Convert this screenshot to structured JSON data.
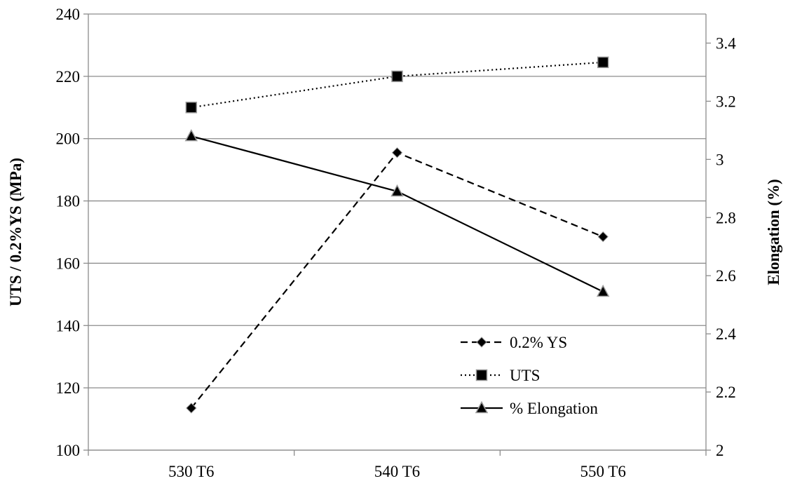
{
  "chart_data": {
    "type": "line",
    "categories": [
      "530 T6",
      "540 T6",
      "550 T6"
    ],
    "ylabel": "UTS / 0.2%YS (MPa)",
    "y2label": "Elongation (%)",
    "ylim": [
      100,
      240
    ],
    "y2lim": [
      2,
      3.5
    ],
    "yticks": [
      "100",
      "120",
      "140",
      "160",
      "180",
      "200",
      "220",
      "240"
    ],
    "y2ticks": [
      "2",
      "2.2",
      "2.4",
      "2.6",
      "2.8",
      "3",
      "3.2",
      "3.4"
    ],
    "grid": "horizontal",
    "legend_position": "bottom-right",
    "series": [
      {
        "name": "0.2% YS",
        "axis": "left",
        "values": [
          113.5,
          195.5,
          168.5
        ],
        "line_style": "dashed",
        "marker": "diamond",
        "color": "#000000"
      },
      {
        "name": "UTS",
        "axis": "left",
        "values": [
          210,
          220,
          224.5
        ],
        "line_style": "dotted",
        "marker": "square",
        "color": "#000000"
      },
      {
        "name": "% Elongation",
        "axis": "right",
        "values": [
          3.08,
          2.89,
          2.545
        ],
        "line_style": "solid",
        "marker": "triangle",
        "color": "#000000"
      }
    ]
  }
}
